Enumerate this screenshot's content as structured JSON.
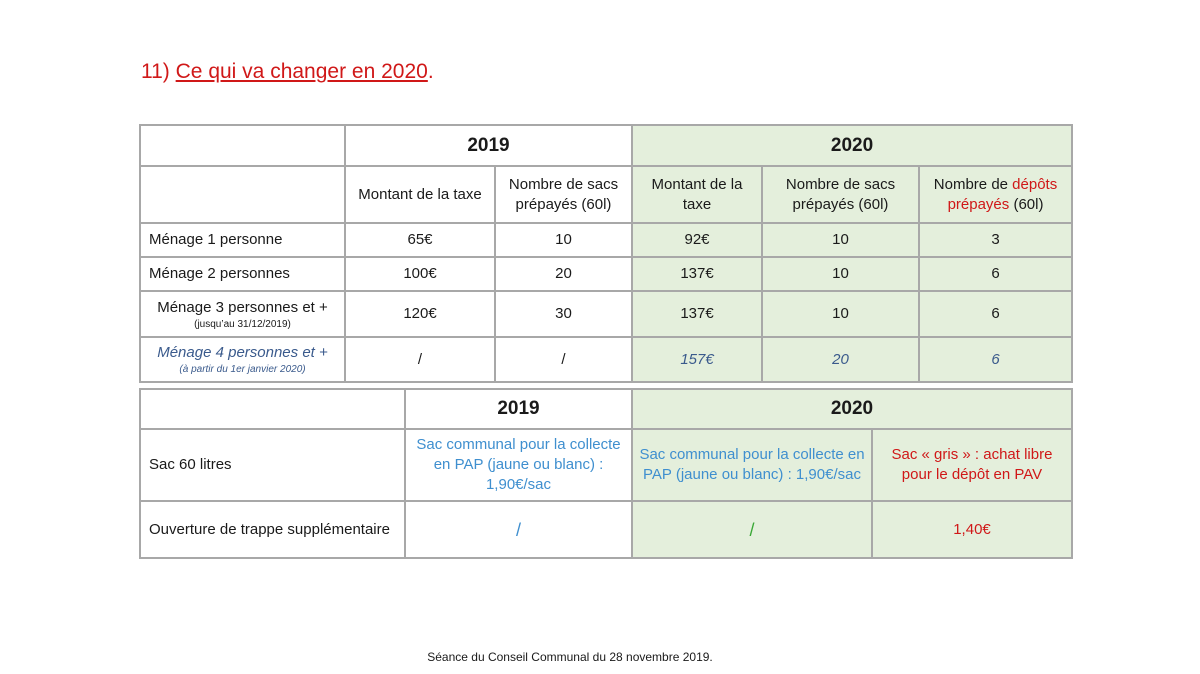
{
  "title": {
    "number": "11)",
    "text": "Ce qui va changer en 2020",
    "suffix": "."
  },
  "table1": {
    "year_2019": "2019",
    "year_2020": "2020",
    "headers": {
      "montant_2019": "Montant de la taxe",
      "sacs_2019": "Nombre de sacs prépayés (60l)",
      "montant_2020": "Montant de la taxe",
      "sacs_2020": "Nombre de sacs prépayés (60l)",
      "depots_prefix": "Nombre de",
      "depots_red": "dépôts prépayés",
      "depots_suffix": "(60l)"
    },
    "rows": [
      {
        "label": "Ménage 1 personne",
        "sub": "",
        "m2019": "65€",
        "s2019": "10",
        "m2020": "92€",
        "s2020": "10",
        "d2020": "3"
      },
      {
        "label": "Ménage 2 personnes",
        "sub": "",
        "m2019": "100€",
        "s2019": "20",
        "m2020": "137€",
        "s2020": "10",
        "d2020": "6"
      },
      {
        "label": "Ménage 3 personnes et  +",
        "sub": "(jusqu’au 31/12/2019)",
        "m2019": "120€",
        "s2019": "30",
        "m2020": "137€",
        "s2020": "10",
        "d2020": "6"
      },
      {
        "label": "Ménage  4 personnes et +",
        "sub": "(à partir du 1er janvier 2020)",
        "m2019": "/",
        "s2019": "/",
        "m2020": "157€",
        "s2020": "20",
        "d2020": "6"
      }
    ]
  },
  "table2": {
    "year_2019": "2019",
    "year_2020": "2020",
    "rows": [
      {
        "label": "Sac  60 litres",
        "c2019": "Sac communal pour la collecte en  PAP (jaune ou blanc) : 1,90€/sac",
        "c2020a": "Sac communal pour la collecte en PAP (jaune ou blanc) : 1,90€/sac",
        "c2020b": "Sac « gris » : achat libre pour le dépôt en PAV"
      },
      {
        "label": "Ouverture de trappe supplémentaire",
        "c2019": "/",
        "c2020a": "/",
        "c2020b": "1,40€"
      }
    ]
  },
  "footer": "Séance du Conseil Communal  du 28 novembre 2019."
}
